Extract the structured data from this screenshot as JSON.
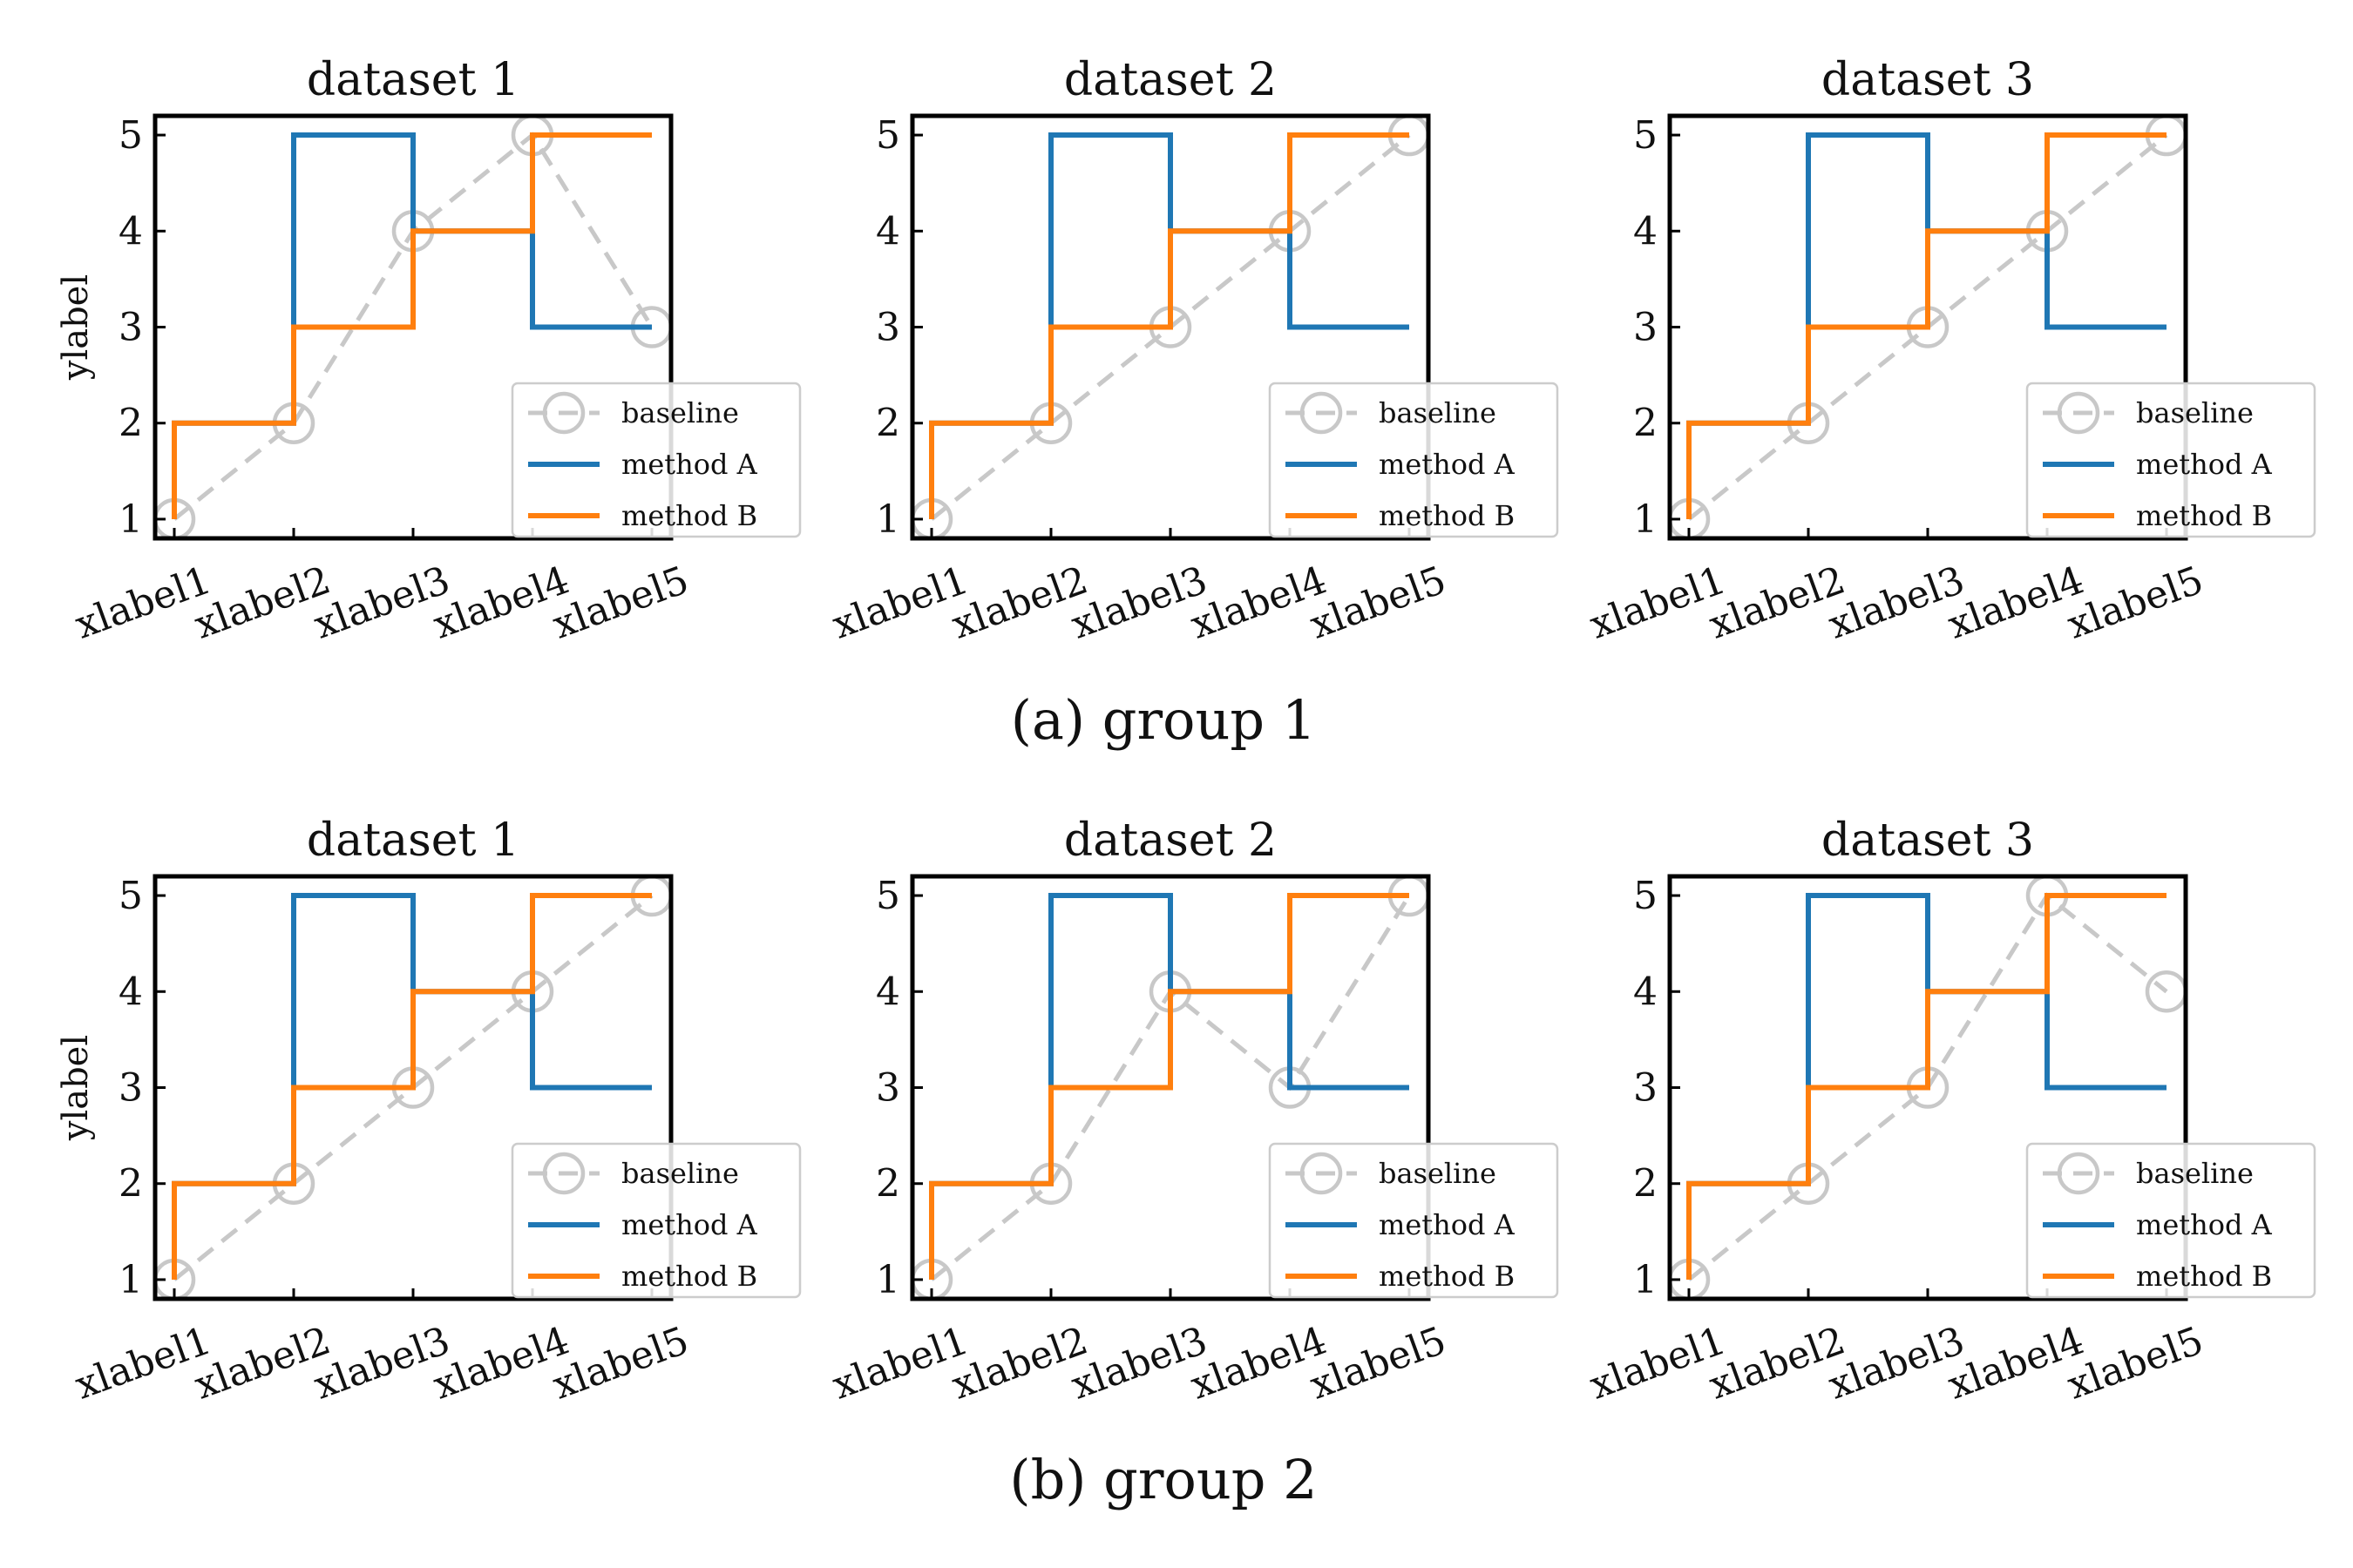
{
  "colors": {
    "baseline": "#c8c8c8",
    "method_a": "#1f77b4",
    "method_b": "#ff7f0e",
    "axes": "#000000",
    "legend_border": "#cccccc"
  },
  "chart_data": [
    {
      "type": "line",
      "group": 0,
      "title": "dataset 1",
      "xlabel": "",
      "ylabel": "ylabel",
      "categories": [
        "xlabel1",
        "xlabel2",
        "xlabel3",
        "xlabel4",
        "xlabel5"
      ],
      "ylim": [
        0.8,
        5.2
      ],
      "yticks": [
        1,
        2,
        3,
        4,
        5
      ],
      "legend": "lower-right",
      "grid": false,
      "series": [
        {
          "name": "baseline",
          "style": "dashed-circle",
          "values": [
            1,
            2,
            4,
            5,
            3
          ]
        },
        {
          "name": "method A",
          "style": "step",
          "values": [
            2,
            5,
            4,
            3,
            3
          ]
        },
        {
          "name": "method B",
          "style": "step",
          "values": [
            2,
            3,
            4,
            5,
            5
          ]
        }
      ]
    },
    {
      "type": "line",
      "group": 0,
      "title": "dataset 2",
      "xlabel": "",
      "ylabel": "",
      "categories": [
        "xlabel1",
        "xlabel2",
        "xlabel3",
        "xlabel4",
        "xlabel5"
      ],
      "ylim": [
        0.8,
        5.2
      ],
      "yticks": [
        1,
        2,
        3,
        4,
        5
      ],
      "legend": "lower-right",
      "grid": false,
      "series": [
        {
          "name": "baseline",
          "style": "dashed-circle",
          "values": [
            1,
            2,
            3,
            4,
            5
          ]
        },
        {
          "name": "method A",
          "style": "step",
          "values": [
            2,
            5,
            4,
            3,
            3
          ]
        },
        {
          "name": "method B",
          "style": "step",
          "values": [
            2,
            3,
            4,
            5,
            5
          ]
        }
      ]
    },
    {
      "type": "line",
      "group": 0,
      "title": "dataset 3",
      "xlabel": "",
      "ylabel": "",
      "categories": [
        "xlabel1",
        "xlabel2",
        "xlabel3",
        "xlabel4",
        "xlabel5"
      ],
      "ylim": [
        0.8,
        5.2
      ],
      "yticks": [
        1,
        2,
        3,
        4,
        5
      ],
      "legend": "lower-right",
      "grid": false,
      "series": [
        {
          "name": "baseline",
          "style": "dashed-circle",
          "values": [
            1,
            2,
            3,
            4,
            5
          ]
        },
        {
          "name": "method A",
          "style": "step",
          "values": [
            2,
            5,
            4,
            3,
            3
          ]
        },
        {
          "name": "method B",
          "style": "step",
          "values": [
            2,
            3,
            4,
            5,
            5
          ]
        }
      ]
    },
    {
      "type": "line",
      "group": 1,
      "title": "dataset 1",
      "xlabel": "",
      "ylabel": "ylabel",
      "categories": [
        "xlabel1",
        "xlabel2",
        "xlabel3",
        "xlabel4",
        "xlabel5"
      ],
      "ylim": [
        0.8,
        5.2
      ],
      "yticks": [
        1,
        2,
        3,
        4,
        5
      ],
      "legend": "lower-right",
      "grid": false,
      "series": [
        {
          "name": "baseline",
          "style": "dashed-circle",
          "values": [
            1,
            2,
            3,
            4,
            5
          ]
        },
        {
          "name": "method A",
          "style": "step",
          "values": [
            2,
            5,
            4,
            3,
            3
          ]
        },
        {
          "name": "method B",
          "style": "step",
          "values": [
            2,
            3,
            4,
            5,
            5
          ]
        }
      ]
    },
    {
      "type": "line",
      "group": 1,
      "title": "dataset 2",
      "xlabel": "",
      "ylabel": "",
      "categories": [
        "xlabel1",
        "xlabel2",
        "xlabel3",
        "xlabel4",
        "xlabel5"
      ],
      "ylim": [
        0.8,
        5.2
      ],
      "yticks": [
        1,
        2,
        3,
        4,
        5
      ],
      "legend": "lower-right",
      "grid": false,
      "series": [
        {
          "name": "baseline",
          "style": "dashed-circle",
          "values": [
            1,
            2,
            4,
            3,
            5
          ]
        },
        {
          "name": "method A",
          "style": "step",
          "values": [
            2,
            5,
            4,
            3,
            3
          ]
        },
        {
          "name": "method B",
          "style": "step",
          "values": [
            2,
            3,
            4,
            5,
            5
          ]
        }
      ]
    },
    {
      "type": "line",
      "group": 1,
      "title": "dataset 3",
      "xlabel": "",
      "ylabel": "",
      "categories": [
        "xlabel1",
        "xlabel2",
        "xlabel3",
        "xlabel4",
        "xlabel5"
      ],
      "ylim": [
        0.8,
        5.2
      ],
      "yticks": [
        1,
        2,
        3,
        4,
        5
      ],
      "legend": "lower-right",
      "grid": false,
      "series": [
        {
          "name": "baseline",
          "style": "dashed-circle",
          "values": [
            1,
            2,
            3,
            5,
            4
          ]
        },
        {
          "name": "method A",
          "style": "step",
          "values": [
            2,
            5,
            4,
            3,
            3
          ]
        },
        {
          "name": "method B",
          "style": "step",
          "values": [
            2,
            3,
            4,
            5,
            5
          ]
        }
      ]
    }
  ],
  "captions": [
    "(a) group 1",
    "(b) group 2"
  ]
}
